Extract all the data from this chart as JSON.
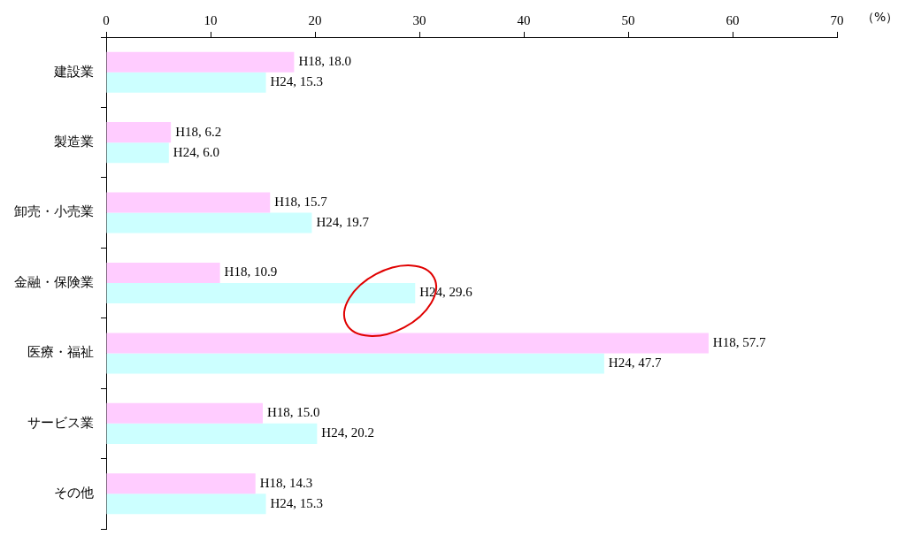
{
  "chart_data": {
    "type": "bar",
    "orientation": "horizontal",
    "xlabel": "（%）",
    "categories": [
      "建設業",
      "製造業",
      "卸売・小売業",
      "金融・保険業",
      "医療・福祉",
      "サービス業",
      "その他"
    ],
    "series": [
      {
        "color": "#ffccff",
        "values": [
          18.0,
          6.2,
          15.7,
          10.9,
          57.7,
          15.0,
          14.3
        ],
        "value_labels": [
          "H18, 18.0",
          "H18, 6.2",
          "H18, 15.7",
          "H18, 10.9",
          "H18, 57.7",
          "H18, 15.0",
          "H18, 14.3"
        ]
      },
      {
        "color": "#ccffff",
        "values": [
          15.3,
          6.0,
          19.7,
          29.6,
          47.7,
          20.2,
          15.3
        ],
        "value_labels": [
          "H24, 15.3",
          "H24, 6.0",
          "H24, 19.7",
          "H24, 29.6",
          "H24, 47.7",
          "H24, 20.2",
          "H24, 15.3"
        ]
      }
    ],
    "xlim": [
      0,
      70
    ],
    "xticks": [
      0,
      10,
      20,
      30,
      40,
      50,
      60,
      70
    ],
    "grid": false,
    "legend": false
  }
}
